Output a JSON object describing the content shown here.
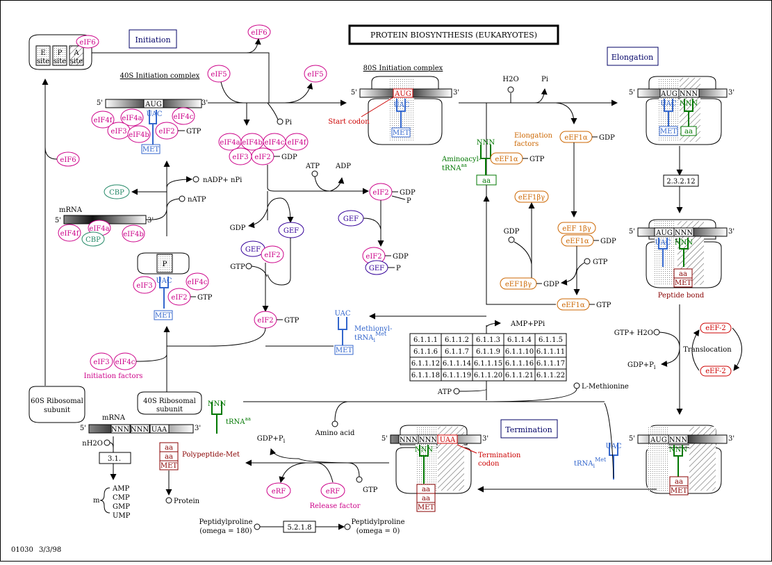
{
  "title": "PROTEIN BIOSYNTHESIS (EUKARYOTES)",
  "footer": {
    "map_id": "01030",
    "date": "3/3/98"
  },
  "sections": {
    "initiation": "Initiation",
    "elongation": "Elongation",
    "termination": "Termination"
  },
  "labels": {
    "initiation_complex_40s": "40S Initiation complex",
    "initiation_complex_80s": "80S Initiation complex",
    "start_codon": "Start codon",
    "elongation_factors_1": "Elongation",
    "elongation_factors_2": "factors",
    "aminoacyl_trna_1": "Aminoacyl-",
    "aminoacyl_trna_2": "tRNA",
    "aminoacyl_trna_sup": "aa",
    "methionyl_trna_1": "Methionyl-",
    "methionyl_trna_2": "tRNA",
    "methionyl_trna_sub": "i",
    "methionyl_trna_sup": "Met",
    "initiation_factors": "Initiation factors",
    "peptide_bond": "Peptide bond",
    "translocation": "Translocation",
    "termination_codon_1": "Termination",
    "termination_codon_2": "codon",
    "release_factor": "Release factor",
    "polypeptide_met": "Polypeptide-Met",
    "protein": "Protein",
    "amino_acid": "Amino acid",
    "l_methionine": "L-Methionine",
    "trna_aa": "tRNA",
    "trna_aa_sup": "aa",
    "trna_met": "tRNA",
    "trna_met_sub": "i",
    "trna_met_sup": "Met",
    "ribosomal_60s_1": "60S Ribosomal",
    "ribosomal_60s_2": "subunit",
    "ribosomal_40s_1": "40S Ribosomal",
    "ribosomal_40s_2": "subunit",
    "mrna": "mRNA",
    "mrna2": "mRNA",
    "peptidylproline_a": "Peptidylproline",
    "omega_180": "(omega = 180)",
    "peptidylproline_b": "Peptidylproline",
    "omega_0": "(omega = 0)"
  },
  "site_labels": {
    "e": "E",
    "p": "P",
    "a": "A",
    "site": "site"
  },
  "codons": {
    "aug": "AUG",
    "nnn": "NNN",
    "uaa": "UAA",
    "uac": "UAC"
  },
  "boxes": {
    "met": "MET",
    "aa": "aa",
    "p_site": "P"
  },
  "ends": {
    "five": "5'",
    "three": "3'"
  },
  "factors": {
    "eif6": "eIF6",
    "eif5": "eIF5",
    "eif4f": "eIF4f",
    "eif4a": "eIF4a",
    "eif4b": "eIF4b",
    "eif4c": "eIF4c",
    "eif3": "eIF3",
    "eif2": "eIF2",
    "cbp": "CBP",
    "gef": "GEF",
    "eef1a": "eEF1α",
    "eef1by": "eEF1βγ",
    "eef1by_sp": "eEF 1βγ",
    "eef2": "eEF-2",
    "erf": "eRF"
  },
  "small_molecules": {
    "gtp": "GTP",
    "gdp": "GDP",
    "pi": "Pi",
    "p": "P",
    "atp": "ATP",
    "adp": "ADP",
    "h2o": "H2O",
    "nadp_npi": "nADP+ nPi",
    "natp": "nATP",
    "amp_ppi": "AMP+PPi",
    "gtp_h2o": "GTP+ H2O",
    "gdp_pi": "GDP+P",
    "gdp_pi_sub": "i",
    "nh2o": "nH2O",
    "m": "m",
    "amp": "AMP",
    "cmp": "CMP",
    "gmp": "GMP",
    "ump": "UMP"
  },
  "enzymes": {
    "ec_23212": "2.3.2.12",
    "ec_31": "3.1.",
    "ec_5218": "5.2.1.8"
  },
  "ec_grid": [
    [
      "6.1.1.1",
      "6.1.1.2",
      "6.1.1.3",
      "6.1.1.4",
      "6.1.1.5"
    ],
    [
      "6.1.1.6",
      "6.1.1.7",
      "6.1.1.9",
      "6.1.1.10",
      "6.1.1.11"
    ],
    [
      "6.1.1.12",
      "6.1.1.14",
      "6.1.1.15",
      "6.1.1.16",
      "6.1.1.17"
    ],
    [
      "6.1.1.18",
      "6.1.1.19",
      "6.1.1.20",
      "6.1.1.21",
      "6.1.1.22"
    ]
  ],
  "colors": {
    "magenta": "#cc0088",
    "blue": "#3366cc",
    "green": "#007700",
    "orange": "#cc6600",
    "red": "#cc0000",
    "maroon": "#880000",
    "navy": "#000066",
    "purple": "#330099",
    "teal": "#228866"
  }
}
